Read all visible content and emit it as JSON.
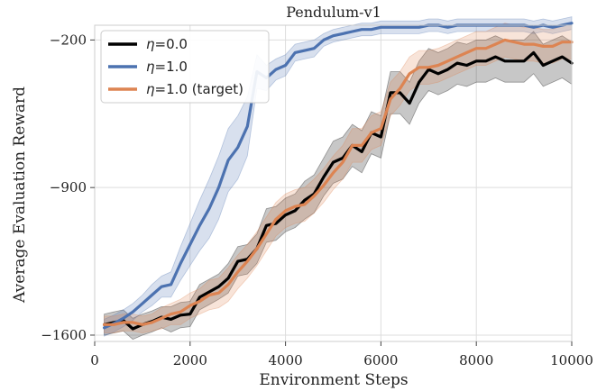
{
  "chart_data": {
    "type": "line",
    "title": "Pendulum-v1",
    "xlabel": "Environment Steps",
    "ylabel": "Average Evaluation Reward",
    "xlim": [
      0,
      10000
    ],
    "ylim": [
      -1630,
      -130
    ],
    "xticks": [
      0,
      2000,
      4000,
      6000,
      8000,
      10000
    ],
    "yticks": [
      -1600,
      -900,
      -200
    ],
    "grid": true,
    "legend_position": "top-left",
    "x": [
      200,
      400,
      600,
      800,
      1000,
      1200,
      1400,
      1600,
      1800,
      2000,
      2200,
      2400,
      2600,
      2800,
      3000,
      3200,
      3400,
      3600,
      3800,
      4000,
      4200,
      4400,
      4600,
      4800,
      5000,
      5200,
      5400,
      5600,
      5800,
      6000,
      6200,
      6400,
      6600,
      6800,
      7000,
      7200,
      7400,
      7600,
      7800,
      8000,
      8200,
      8400,
      8600,
      8800,
      9000,
      9200,
      9400,
      9600,
      9800,
      10000
    ],
    "series": [
      {
        "name": "η=0.0",
        "symbol": "η",
        "value_text": "=0.0",
        "color": "#000000",
        "values": [
          -1550,
          -1540,
          -1530,
          -1570,
          -1550,
          -1535,
          -1515,
          -1525,
          -1505,
          -1500,
          -1420,
          -1395,
          -1370,
          -1330,
          -1250,
          -1240,
          -1190,
          -1080,
          -1070,
          -1030,
          -1010,
          -960,
          -930,
          -850,
          -780,
          -760,
          -700,
          -730,
          -640,
          -660,
          -450,
          -450,
          -500,
          -400,
          -340,
          -360,
          -340,
          -310,
          -320,
          -300,
          -300,
          -280,
          -300,
          -300,
          -300,
          -260,
          -320,
          -300,
          -280,
          -310
        ],
        "band": [
          50,
          50,
          50,
          50,
          50,
          50,
          50,
          60,
          60,
          60,
          60,
          60,
          60,
          70,
          70,
          70,
          70,
          80,
          80,
          80,
          80,
          90,
          90,
          90,
          100,
          100,
          100,
          100,
          100,
          100,
          100,
          100,
          100,
          100,
          100,
          100,
          100,
          100,
          100,
          100,
          100,
          100,
          100,
          100,
          100,
          100,
          100,
          100,
          100,
          100
        ]
      },
      {
        "name": "η=1.0",
        "symbol": "η",
        "value_text": "=1.0",
        "color": "#4c72b0",
        "values": [
          -1565,
          -1545,
          -1520,
          -1490,
          -1450,
          -1410,
          -1370,
          -1360,
          -1260,
          -1170,
          -1080,
          -1000,
          -900,
          -770,
          -710,
          -610,
          -350,
          -380,
          -340,
          -320,
          -260,
          -250,
          -240,
          -200,
          -180,
          -170,
          -160,
          -150,
          -150,
          -140,
          -140,
          -140,
          -140,
          -140,
          -130,
          -130,
          -140,
          -130,
          -130,
          -130,
          -130,
          -130,
          -130,
          -130,
          -130,
          -140,
          -130,
          -140,
          -130,
          -120
        ],
        "band": [
          40,
          40,
          40,
          40,
          40,
          50,
          50,
          60,
          80,
          100,
          120,
          140,
          150,
          150,
          150,
          140,
          80,
          60,
          50,
          50,
          40,
          40,
          40,
          30,
          30,
          30,
          30,
          30,
          30,
          30,
          30,
          30,
          30,
          30,
          30,
          30,
          30,
          30,
          30,
          30,
          30,
          30,
          30,
          30,
          30,
          30,
          30,
          30,
          30,
          30
        ]
      },
      {
        "name": "η=1.0 (target)",
        "symbol": "η",
        "value_text": "=1.0 (target)",
        "color": "#dd8452",
        "values": [
          -1550,
          -1550,
          -1540,
          -1540,
          -1550,
          -1540,
          -1520,
          -1500,
          -1490,
          -1460,
          -1440,
          -1410,
          -1400,
          -1360,
          -1300,
          -1250,
          -1190,
          -1120,
          -1050,
          -1010,
          -990,
          -980,
          -940,
          -890,
          -830,
          -780,
          -700,
          -700,
          -640,
          -620,
          -480,
          -430,
          -360,
          -330,
          -330,
          -320,
          -300,
          -280,
          -260,
          -240,
          -240,
          -220,
          -200,
          -210,
          -220,
          -220,
          -230,
          -230,
          -210,
          -210
        ],
        "band": [
          40,
          40,
          40,
          40,
          40,
          40,
          50,
          50,
          60,
          60,
          60,
          70,
          70,
          80,
          80,
          80,
          80,
          80,
          80,
          80,
          80,
          80,
          80,
          80,
          80,
          80,
          80,
          80,
          80,
          80,
          80,
          80,
          80,
          80,
          80,
          80,
          80,
          80,
          80,
          80,
          80,
          80,
          80,
          80,
          80,
          80,
          80,
          80,
          80,
          80
        ]
      }
    ]
  }
}
